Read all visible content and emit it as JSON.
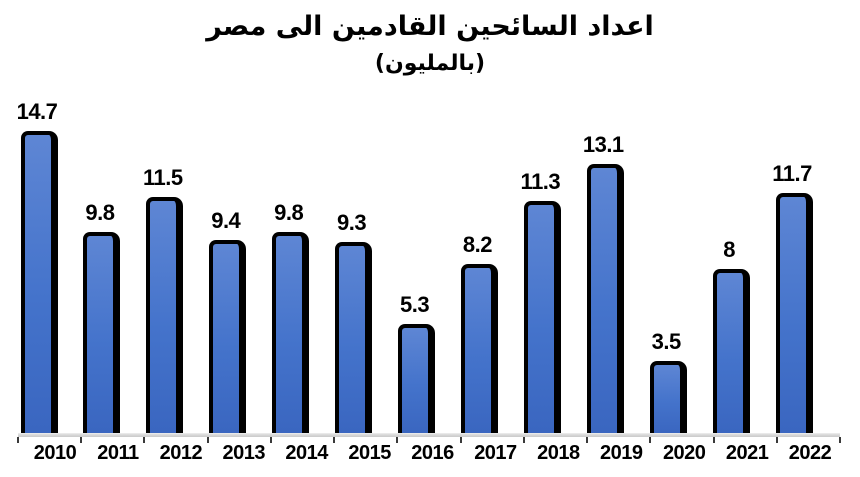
{
  "chart_data": {
    "type": "bar",
    "title": "اعداد السائحين القادمين الى مصر",
    "subtitle": "(بالمليون)",
    "categories": [
      "2010",
      "2011",
      "2012",
      "2013",
      "2014",
      "2015",
      "2016",
      "2017",
      "2018",
      "2019",
      "2020",
      "2021",
      "2022"
    ],
    "values": [
      14.7,
      9.8,
      11.5,
      9.4,
      9.8,
      9.3,
      5.3,
      8.2,
      11.3,
      13.1,
      3.5,
      8,
      11.7
    ],
    "xlabel": "",
    "ylabel": "",
    "ylim": [
      0,
      15.5
    ],
    "grid": false,
    "legend_position": "none",
    "data_labels": true,
    "colors": {
      "bar_fill_top": "#5E86D4",
      "bar_fill_mid": "#4473CB",
      "bar_fill_bottom": "#3A66C0",
      "bar_outline": "#000000",
      "axis_line": "#D9D9D9",
      "tick": "#3A3A3A",
      "text": "#000000"
    }
  }
}
